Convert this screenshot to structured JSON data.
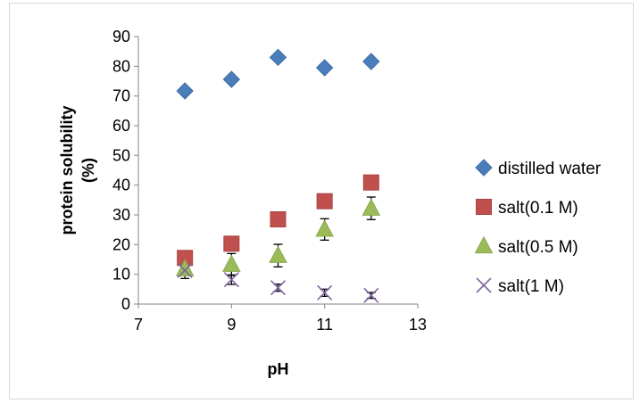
{
  "chart_data": {
    "type": "scatter",
    "title": "",
    "xlabel": "pH",
    "ylabel_lines": [
      "protein solubility",
      "(%)"
    ],
    "xlim": [
      7,
      13
    ],
    "ylim": [
      0,
      90
    ],
    "xticks": [
      7,
      9,
      11,
      13
    ],
    "yticks": [
      0,
      10,
      20,
      30,
      40,
      50,
      60,
      70,
      80,
      90
    ],
    "grid": false,
    "legend_position": "right",
    "series": [
      {
        "name": "distilled water",
        "marker": "diamond",
        "color": "#4a7ebb",
        "points": [
          {
            "x": 8,
            "y": 71.7
          },
          {
            "x": 9,
            "y": 75.6
          },
          {
            "x": 10,
            "y": 83.0
          },
          {
            "x": 11,
            "y": 79.5
          },
          {
            "x": 12,
            "y": 81.6
          }
        ]
      },
      {
        "name": "salt(0.1 M)",
        "marker": "square",
        "color": "#c0504d",
        "points": [
          {
            "x": 8,
            "y": 15.5
          },
          {
            "x": 9,
            "y": 20.3
          },
          {
            "x": 10,
            "y": 28.5
          },
          {
            "x": 11,
            "y": 34.6
          },
          {
            "x": 12,
            "y": 40.9
          }
        ]
      },
      {
        "name": "salt(0.5 M)",
        "marker": "triangle",
        "color": "#9bbb59",
        "points": [
          {
            "x": 8,
            "y": 11.8,
            "err": 3.2
          },
          {
            "x": 9,
            "y": 13.3,
            "err": 3.7
          },
          {
            "x": 10,
            "y": 16.3,
            "err": 3.8
          },
          {
            "x": 11,
            "y": 25.1,
            "err": 3.6
          },
          {
            "x": 12,
            "y": 32.2,
            "err": 3.8
          }
        ]
      },
      {
        "name": "salt(1 M)",
        "marker": "x",
        "color": "#8064a2",
        "points": [
          {
            "x": 8,
            "y": 11.3
          },
          {
            "x": 9,
            "y": 8.2,
            "err": 1.6
          },
          {
            "x": 10,
            "y": 5.5,
            "err": 1.2
          },
          {
            "x": 11,
            "y": 3.8,
            "err": 1.2
          },
          {
            "x": 12,
            "y": 2.9,
            "err": 1.0
          }
        ]
      }
    ]
  }
}
